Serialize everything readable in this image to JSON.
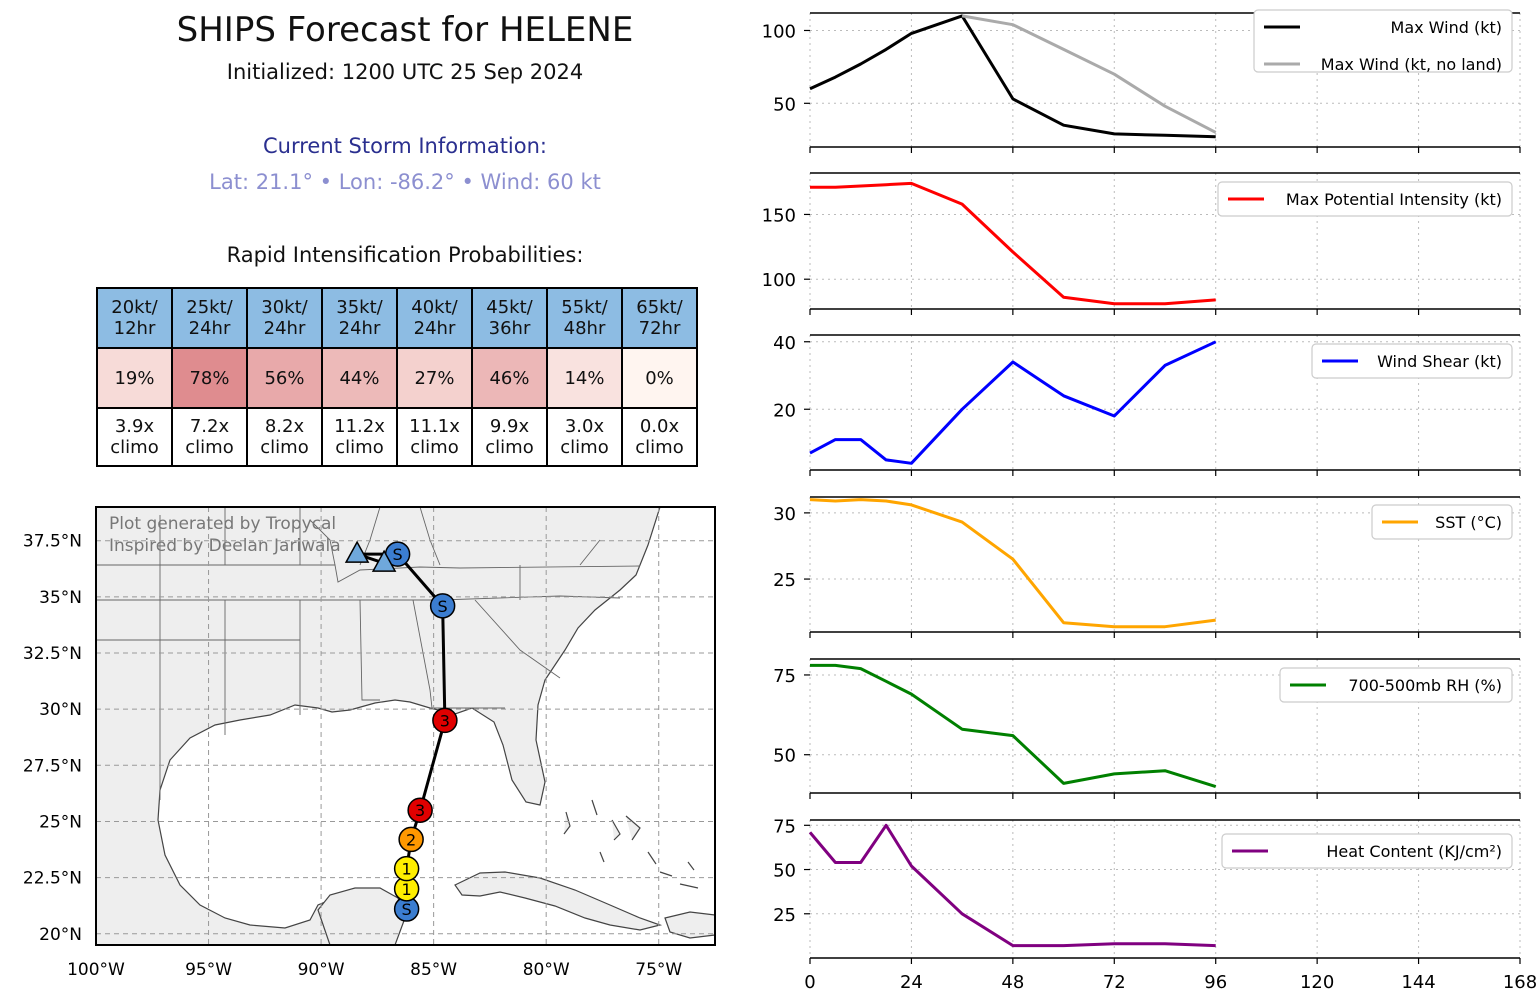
{
  "header": {
    "title": "SHIPS Forecast for HELENE",
    "initialized": "Initialized: 1200 UTC 25 Sep 2024"
  },
  "storm_info": {
    "heading": "Current Storm Information:",
    "summary": "Lat: 21.1°  • Lon: -86.2°  • Wind: 60 kt"
  },
  "ri_table": {
    "title": "Rapid Intensification Probabilities:",
    "columns": [
      {
        "l1": "20kt/",
        "l2": "12hr",
        "pct": "19%",
        "p": 19,
        "c1": "3.9x",
        "c2": "climo"
      },
      {
        "l1": "25kt/",
        "l2": "24hr",
        "pct": "78%",
        "p": 78,
        "c1": "7.2x",
        "c2": "climo"
      },
      {
        "l1": "30kt/",
        "l2": "24hr",
        "pct": "56%",
        "p": 56,
        "c1": "8.2x",
        "c2": "climo"
      },
      {
        "l1": "35kt/",
        "l2": "24hr",
        "pct": "44%",
        "p": 44,
        "c1": "11.2x",
        "c2": "climo"
      },
      {
        "l1": "40kt/",
        "l2": "24hr",
        "pct": "27%",
        "p": 27,
        "c1": "11.1x",
        "c2": "climo"
      },
      {
        "l1": "45kt/",
        "l2": "36hr",
        "pct": "46%",
        "p": 46,
        "c1": "9.9x",
        "c2": "climo"
      },
      {
        "l1": "55kt/",
        "l2": "48hr",
        "pct": "14%",
        "p": 14,
        "c1": "3.0x",
        "c2": "climo"
      },
      {
        "l1": "65kt/",
        "l2": "72hr",
        "pct": "0%",
        "p": 0,
        "c1": "0.0x",
        "c2": "climo"
      }
    ]
  },
  "map": {
    "credit_line1": "Plot generated by Tropycal",
    "credit_line2": "Inspired by Deelan Jariwala",
    "lon_range": [
      -100,
      -72.5
    ],
    "lat_range": [
      19.5,
      39
    ],
    "lon_ticks": [
      -100,
      -95,
      -90,
      -85,
      -80,
      -75
    ],
    "lon_labels": [
      "100°W",
      "95°W",
      "90°W",
      "85°W",
      "80°W",
      "75°W"
    ],
    "lat_ticks": [
      20,
      22.5,
      25,
      27.5,
      30,
      32.5,
      35,
      37.5
    ],
    "lat_labels": [
      "20°N",
      "22.5°N",
      "25°N",
      "27.5°N",
      "30°N",
      "32.5°N",
      "35°N",
      "37.5°N"
    ],
    "track": [
      {
        "lon": -86.2,
        "lat": 21.1,
        "symbol": "S",
        "color": "#3b7dd0"
      },
      {
        "lon": -86.2,
        "lat": 22.0,
        "symbol": "1",
        "color": "#ffee00"
      },
      {
        "lon": -86.2,
        "lat": 22.9,
        "symbol": "1",
        "color": "#ffee00"
      },
      {
        "lon": -86.0,
        "lat": 24.2,
        "symbol": "2",
        "color": "#ff9800"
      },
      {
        "lon": -85.6,
        "lat": 25.5,
        "symbol": "3",
        "color": "#e00000"
      },
      {
        "lon": -84.5,
        "lat": 29.5,
        "symbol": "3",
        "color": "#e00000"
      },
      {
        "lon": -84.6,
        "lat": 34.6,
        "symbol": "S",
        "color": "#3b7dd0"
      },
      {
        "lon": -86.6,
        "lat": 36.9,
        "symbol": "S",
        "color": "#3b7dd0"
      },
      {
        "lon": -88.4,
        "lat": 36.9,
        "symbol": "",
        "color": "#3b7dd0"
      },
      {
        "lon": -87.2,
        "lat": 36.5,
        "symbol": "",
        "color": "#3b7dd0"
      }
    ]
  },
  "chart_data": [
    {
      "type": "line",
      "x": [
        0,
        12,
        24,
        36,
        48,
        60,
        72,
        84,
        96
      ],
      "xlim": [
        0,
        168
      ],
      "xticks": [
        0,
        24,
        48,
        72,
        96,
        120,
        144,
        168
      ],
      "ylim": [
        20,
        112
      ],
      "yticks": [
        50,
        100
      ],
      "legend_location": "top-right",
      "series": [
        {
          "name": "Max Wind (kt)",
          "color": "#000000",
          "x": [
            0,
            6,
            12,
            18,
            24,
            36,
            48,
            60,
            72,
            84,
            96
          ],
          "values": [
            60,
            68,
            77,
            87,
            98,
            110,
            53,
            35,
            29,
            28,
            27
          ]
        },
        {
          "name": "Max Wind (kt, no land)",
          "color": "#aaaaaa",
          "x": [
            36,
            48,
            60,
            72,
            84,
            96
          ],
          "values": [
            110,
            104,
            87,
            70,
            48,
            30
          ]
        }
      ]
    },
    {
      "type": "line",
      "xlim": [
        0,
        168
      ],
      "xticks": [
        0,
        24,
        48,
        72,
        96,
        120,
        144,
        168
      ],
      "ylim": [
        77,
        182
      ],
      "yticks": [
        100,
        150
      ],
      "legend_location": "top-right",
      "series": [
        {
          "name": "Max Potential Intensity (kt)",
          "color": "#ff0000",
          "x": [
            0,
            6,
            12,
            18,
            24,
            36,
            48,
            60,
            72,
            84,
            96
          ],
          "values": [
            171,
            171,
            172,
            173,
            174,
            158,
            121,
            86,
            81,
            81,
            84
          ]
        }
      ]
    },
    {
      "type": "line",
      "xlim": [
        0,
        168
      ],
      "xticks": [
        0,
        24,
        48,
        72,
        96,
        120,
        144,
        168
      ],
      "ylim": [
        2,
        42
      ],
      "yticks": [
        20,
        40
      ],
      "legend_location": "top-right",
      "series": [
        {
          "name": "Wind Shear (kt)",
          "color": "#0000ff",
          "x": [
            0,
            6,
            12,
            18,
            24,
            36,
            48,
            60,
            72,
            84,
            96
          ],
          "values": [
            7,
            11,
            11,
            5,
            4,
            20,
            34,
            24,
            18,
            33,
            40
          ]
        }
      ]
    },
    {
      "type": "line",
      "xlim": [
        0,
        168
      ],
      "xticks": [
        0,
        24,
        48,
        72,
        96,
        120,
        144,
        168
      ],
      "ylim": [
        21,
        31.2
      ],
      "yticks": [
        25,
        30
      ],
      "legend_location": "top-right",
      "series": [
        {
          "name": "SST (°C)",
          "color": "#ffa500",
          "x": [
            0,
            6,
            12,
            18,
            24,
            36,
            48,
            60,
            72,
            84,
            96
          ],
          "values": [
            31.0,
            30.9,
            31.0,
            30.9,
            30.6,
            29.3,
            26.5,
            21.7,
            21.4,
            21.4,
            21.9
          ]
        }
      ]
    },
    {
      "type": "line",
      "xlim": [
        0,
        168
      ],
      "xticks": [
        0,
        24,
        48,
        72,
        96,
        120,
        144,
        168
      ],
      "ylim": [
        38,
        80
      ],
      "yticks": [
        50,
        75
      ],
      "legend_location": "top-right",
      "series": [
        {
          "name": "700-500mb RH (%)",
          "color": "#008000",
          "x": [
            0,
            6,
            12,
            18,
            24,
            36,
            48,
            60,
            72,
            84,
            96
          ],
          "values": [
            78,
            78,
            77,
            73,
            69,
            58,
            56,
            41,
            44,
            45,
            40
          ]
        }
      ]
    },
    {
      "type": "line",
      "xlim": [
        0,
        168
      ],
      "xticks": [
        0,
        24,
        48,
        72,
        96,
        120,
        144,
        168
      ],
      "ylim": [
        0,
        78
      ],
      "yticks": [
        25,
        50,
        75
      ],
      "legend_location": "top-right",
      "series": [
        {
          "name": "Heat Content (KJ/cm²)",
          "color": "#800080",
          "x": [
            0,
            6,
            12,
            18,
            24,
            36,
            48,
            60,
            72,
            84,
            96
          ],
          "values": [
            71,
            54,
            54,
            75,
            52,
            25,
            7,
            7,
            8,
            8,
            7
          ]
        }
      ]
    }
  ]
}
